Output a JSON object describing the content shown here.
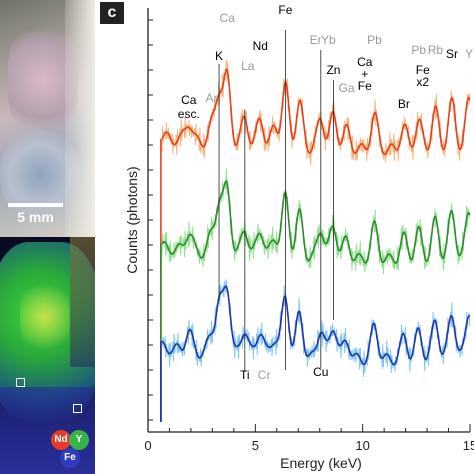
{
  "panel_letter": "c",
  "scale_label": "5 mm",
  "map_legend": [
    "Nd",
    "Y",
    "Fe"
  ],
  "map_legend_colors": [
    "#e63a2f",
    "#37b34a",
    "#2f3bbf"
  ],
  "chart_data": {
    "type": "line",
    "xlabel": "Energy (keV)",
    "ylabel": "Counts (photons)",
    "xlim": [
      0,
      15
    ],
    "x_ticks": [
      "0",
      "5",
      "10",
      "15"
    ],
    "y_scale": "log",
    "grid": false,
    "series": [
      {
        "color_raw": "#f5b27a",
        "color_smooth": "#e8401c"
      },
      {
        "color_raw": "#8fe08a",
        "color_smooth": "#2e8b2e"
      },
      {
        "color_raw": "#7ec6f0",
        "color_smooth": "#2233aa"
      }
    ],
    "element_labels": [
      {
        "text": "Ca",
        "x": 3.69,
        "color": "#999999"
      },
      {
        "text": "Fe",
        "x": 6.4,
        "color": "#000000"
      },
      {
        "text": "K",
        "x": 3.31,
        "color": "#000000"
      },
      {
        "text": "Nd",
        "x": 5.23,
        "color": "#000000"
      },
      {
        "text": "La",
        "x": 4.65,
        "color": "#999999"
      },
      {
        "text": "Ar",
        "x": 2.96,
        "color": "#999999"
      },
      {
        "text": "Ca",
        "x": 1.9,
        "color": "#000000"
      },
      {
        "text": "esc.",
        "x": 1.9,
        "color": "#000000"
      },
      {
        "text": "Er",
        "x": 7.81,
        "color": "#999999"
      },
      {
        "text": "Yb",
        "x": 8.4,
        "color": "#999999"
      },
      {
        "text": "Zn",
        "x": 8.64,
        "color": "#000000"
      },
      {
        "text": "Ga",
        "x": 9.25,
        "color": "#999999"
      },
      {
        "text": "Pb",
        "x": 10.55,
        "color": "#999999"
      },
      {
        "text": "Ca",
        "x": 10.1,
        "color": "#000000"
      },
      {
        "text": "+",
        "x": 10.1,
        "color": "#000000"
      },
      {
        "text": "Fe",
        "x": 10.1,
        "color": "#000000"
      },
      {
        "text": "Pb",
        "x": 12.61,
        "color": "#999999"
      },
      {
        "text": "Rb",
        "x": 13.39,
        "color": "#999999"
      },
      {
        "text": "Fe",
        "x": 12.8,
        "color": "#000000"
      },
      {
        "text": "x2",
        "x": 12.8,
        "color": "#000000"
      },
      {
        "text": "Br",
        "x": 11.92,
        "color": "#000000"
      },
      {
        "text": "Sr",
        "x": 14.16,
        "color": "#000000"
      },
      {
        "text": "Y",
        "x": 14.96,
        "color": "#999999"
      },
      {
        "text": "Ti",
        "x": 4.51,
        "color": "#000000"
      },
      {
        "text": "Cr",
        "x": 5.41,
        "color": "#999999"
      },
      {
        "text": "Cu",
        "x": 8.05,
        "color": "#000000"
      }
    ]
  }
}
